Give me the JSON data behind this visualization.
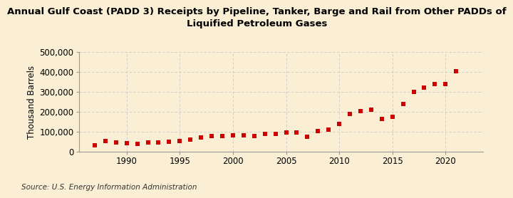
{
  "title": "Annual Gulf Coast (PADD 3) Receipts by Pipeline, Tanker, Barge and Rail from Other PADDs of\nLiquified Petroleum Gases",
  "ylabel": "Thousand Barrels",
  "source": "Source: U.S. Energy Information Administration",
  "background_color": "#faefd4",
  "marker_color": "#cc0000",
  "years": [
    1987,
    1988,
    1989,
    1990,
    1991,
    1992,
    1993,
    1994,
    1995,
    1996,
    1997,
    1998,
    1999,
    2000,
    2001,
    2002,
    2003,
    2004,
    2005,
    2006,
    2007,
    2008,
    2009,
    2010,
    2011,
    2012,
    2013,
    2014,
    2015,
    2016,
    2017,
    2018,
    2019,
    2020,
    2021
  ],
  "values": [
    32000,
    52000,
    48000,
    42000,
    38000,
    45000,
    48000,
    50000,
    55000,
    62000,
    70000,
    78000,
    80000,
    82000,
    82000,
    80000,
    88000,
    90000,
    98000,
    97000,
    75000,
    105000,
    112000,
    140000,
    190000,
    202000,
    212000,
    165000,
    175000,
    238000,
    300000,
    320000,
    340000,
    340000,
    403000
  ],
  "ylim": [
    0,
    500000
  ],
  "xlim": [
    1985.5,
    2023.5
  ],
  "yticks": [
    0,
    100000,
    200000,
    300000,
    400000,
    500000
  ],
  "xticks": [
    1990,
    1995,
    2000,
    2005,
    2010,
    2015,
    2020
  ],
  "grid_color": "#c8c8c8",
  "title_fontsize": 9.5,
  "axis_fontsize": 8.5,
  "source_fontsize": 7.5
}
